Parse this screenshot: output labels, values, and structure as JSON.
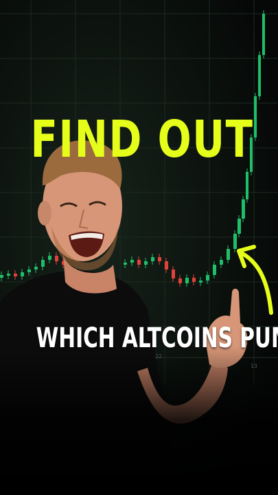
{
  "headline": "FIND OUT",
  "subline": "WHICH ALTCOINS PUMP",
  "axis_labels": [
    "22",
    "13"
  ],
  "colors": {
    "headline": "#e6ff1a",
    "subline": "#ffffff",
    "candle_up": "#1fbf6a",
    "candle_down": "#e0423b",
    "arrow": "#e6ff1a",
    "background": "#070908"
  }
}
